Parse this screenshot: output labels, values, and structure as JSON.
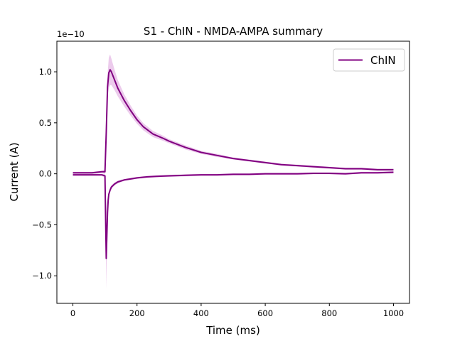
{
  "chart_data": {
    "type": "line",
    "title": "S1 - ChIN - NMDA-AMPA summary",
    "xlabel": "Time (ms)",
    "ylabel": "Current (A)",
    "y_offset_label": "1e−10",
    "xlim": [
      -50,
      1050
    ],
    "ylim": [
      -1.27,
      1.3
    ],
    "x_ticks": [
      0,
      200,
      400,
      600,
      800,
      1000
    ],
    "x_tick_labels": [
      "0",
      "200",
      "400",
      "600",
      "800",
      "1000"
    ],
    "y_ticks": [
      -1.0,
      -0.5,
      0.0,
      0.5,
      1.0
    ],
    "y_tick_labels": [
      "−1.0",
      "−0.5",
      "0.0",
      "0.5",
      "1.0"
    ],
    "grid": false,
    "legend_placement": "top-right",
    "color": "#800080",
    "band_color": "#dda0dd",
    "series": [
      {
        "name": "ChIN",
        "trace": "positive",
        "x": [
          0,
          30,
          60,
          90,
          100,
          104,
          108,
          112,
          116,
          120,
          130,
          140,
          160,
          180,
          200,
          220,
          250,
          280,
          300,
          350,
          400,
          450,
          500,
          550,
          600,
          650,
          700,
          750,
          800,
          850,
          900,
          950,
          1000
        ],
        "y": [
          0.01,
          0.01,
          0.01,
          0.02,
          0.02,
          0.4,
          0.85,
          0.99,
          1.02,
          1.0,
          0.92,
          0.84,
          0.72,
          0.62,
          0.53,
          0.46,
          0.39,
          0.35,
          0.32,
          0.26,
          0.21,
          0.18,
          0.15,
          0.13,
          0.11,
          0.09,
          0.08,
          0.07,
          0.06,
          0.05,
          0.05,
          0.04,
          0.04
        ],
        "band": [
          0.01,
          0.01,
          0.01,
          0.01,
          0.02,
          0.06,
          0.12,
          0.15,
          0.15,
          0.13,
          0.1,
          0.08,
          0.06,
          0.05,
          0.04,
          0.035,
          0.03,
          0.025,
          0.02,
          0.02,
          0.015,
          0.015,
          0.01,
          0.01,
          0.01,
          0.01,
          0.01,
          0.01,
          0.01,
          0.01,
          0.01,
          0.01,
          0.01
        ]
      },
      {
        "name": "",
        "trace": "negative",
        "x": [
          0,
          30,
          60,
          90,
          100,
          104,
          106,
          108,
          110,
          112,
          116,
          120,
          130,
          140,
          160,
          180,
          200,
          230,
          260,
          300,
          350,
          400,
          450,
          500,
          550,
          600,
          650,
          700,
          750,
          800,
          850,
          900,
          950,
          1000
        ],
        "y": [
          -0.01,
          -0.01,
          -0.01,
          -0.01,
          -0.02,
          -0.83,
          -0.6,
          -0.38,
          -0.26,
          -0.2,
          -0.16,
          -0.13,
          -0.1,
          -0.08,
          -0.06,
          -0.05,
          -0.04,
          -0.03,
          -0.025,
          -0.02,
          -0.015,
          -0.01,
          -0.01,
          -0.005,
          -0.005,
          0.0,
          0.0,
          0.0,
          0.005,
          0.005,
          0.0,
          0.01,
          0.01,
          0.015
        ],
        "band": [
          0.01,
          0.01,
          0.01,
          0.01,
          0.02,
          0.3,
          0.1,
          0.06,
          0.04,
          0.03,
          0.02,
          0.02,
          0.015,
          0.015,
          0.01,
          0.01,
          0.01,
          0.01,
          0.01,
          0.01,
          0.01,
          0.01,
          0.01,
          0.01,
          0.01,
          0.01,
          0.01,
          0.01,
          0.01,
          0.01,
          0.01,
          0.01,
          0.01,
          0.01
        ]
      }
    ]
  }
}
